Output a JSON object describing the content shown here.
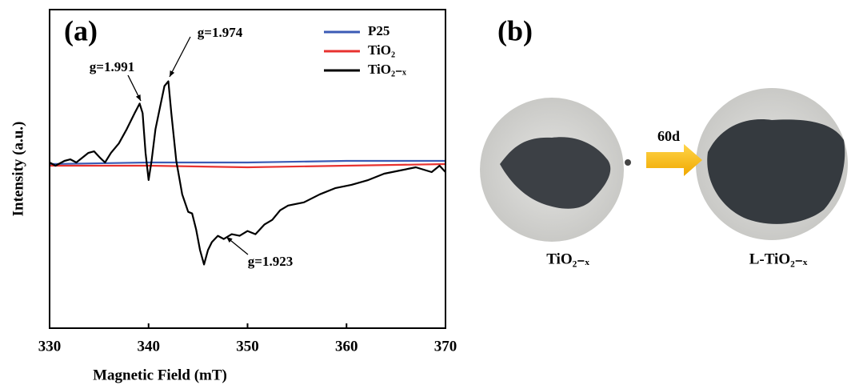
{
  "chart_data": {
    "type": "line",
    "panel_label": "(a)",
    "x_label": "Magnetic Field (mT)",
    "y_label": "Intensity (a.u.)",
    "xlim": [
      330,
      370
    ],
    "xticks": [
      330,
      340,
      350,
      360,
      370
    ],
    "ylim": [
      -1,
      1
    ],
    "legend": "upper right",
    "series": [
      {
        "name": "P25",
        "color": "#3b5bb5",
        "x": [
          330,
          340,
          350,
          360,
          370
        ],
        "values": [
          0.03,
          0.04,
          0.04,
          0.05,
          0.05
        ]
      },
      {
        "name": "TiO₂",
        "color": "#e8322f",
        "x": [
          330,
          340,
          350,
          360,
          370
        ],
        "values": [
          0.02,
          0.02,
          0.01,
          0.02,
          0.03
        ]
      },
      {
        "name": "TiO₂₋ₓ",
        "color": "#000000",
        "x": [
          330.0,
          330.6,
          331.5,
          332.1,
          332.7,
          333.3,
          333.9,
          334.5,
          335.1,
          335.6,
          336.2,
          337.0,
          337.8,
          338.6,
          339.1,
          339.4,
          339.7,
          340.0,
          340.3,
          340.7,
          341.2,
          341.6,
          342.0,
          342.3,
          342.8,
          343.4,
          344.0,
          344.4,
          344.8,
          345.2,
          345.6,
          346.0,
          346.4,
          347.0,
          347.6,
          348.4,
          349.2,
          350.0,
          350.8,
          351.7,
          352.5,
          353.3,
          354.1,
          355.7,
          357.3,
          358.9,
          360.5,
          362.2,
          363.8,
          365.4,
          367.0,
          368.6,
          369.4,
          370.0
        ],
        "values": [
          0.04,
          0.02,
          0.05,
          0.06,
          0.04,
          0.07,
          0.1,
          0.11,
          0.07,
          0.04,
          0.1,
          0.16,
          0.25,
          0.35,
          0.41,
          0.35,
          0.1,
          -0.07,
          0.05,
          0.25,
          0.4,
          0.52,
          0.55,
          0.35,
          0.05,
          -0.16,
          -0.27,
          -0.28,
          -0.38,
          -0.51,
          -0.6,
          -0.51,
          -0.46,
          -0.42,
          -0.44,
          -0.41,
          -0.42,
          -0.39,
          -0.41,
          -0.35,
          -0.32,
          -0.26,
          -0.23,
          -0.21,
          -0.16,
          -0.12,
          -0.1,
          -0.07,
          -0.03,
          -0.01,
          0.01,
          -0.02,
          0.02,
          -0.02
        ]
      }
    ],
    "annotations": [
      "g=1.991",
      "g=1.974",
      "g=1.923"
    ]
  },
  "panel_b": {
    "panel_label": "(b)",
    "left_label": "TiO₂₋ₓ",
    "arrow_label": "60d",
    "right_label": "L-TiO₂₋ₓ"
  }
}
